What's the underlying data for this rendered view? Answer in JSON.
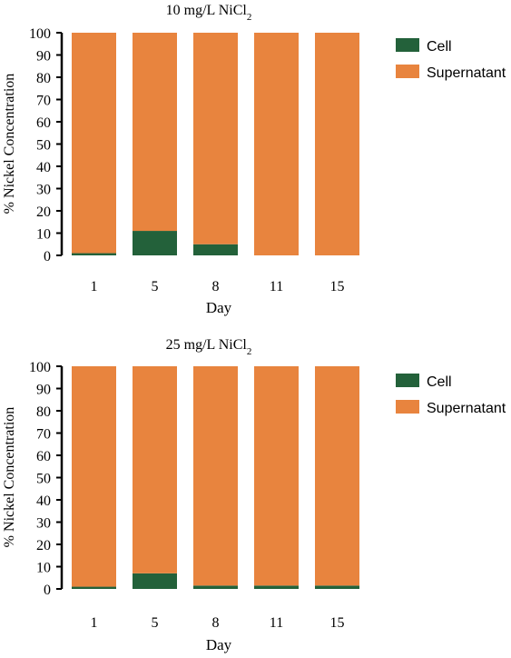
{
  "colors": {
    "cell": "#23613a",
    "supernatant": "#e8843e",
    "axis": "#000000"
  },
  "chart_data": [
    {
      "type": "bar",
      "stacked": true,
      "title_main": "10 mg/L NiCl",
      "title_sub": "2",
      "xlabel": "Day",
      "ylabel": "% Nickel Concentration",
      "ylim": [
        0,
        100
      ],
      "yticks": [
        "0",
        "10",
        "20",
        "30",
        "40",
        "50",
        "60",
        "70",
        "80",
        "90",
        "100"
      ],
      "categories": [
        "1",
        "5",
        "8",
        "11",
        "15"
      ],
      "legend_position": "right",
      "series": [
        {
          "name": "Cell",
          "color": "#23613a",
          "values": [
            1,
            11,
            5,
            0,
            0
          ]
        },
        {
          "name": "Supernatant",
          "color": "#e8843e",
          "values": [
            99,
            89,
            95,
            100,
            100
          ]
        }
      ]
    },
    {
      "type": "bar",
      "stacked": true,
      "title_main": "25 mg/L NiCl",
      "title_sub": "2",
      "xlabel": "Day",
      "ylabel": "% Nickel Concentration",
      "ylim": [
        0,
        100
      ],
      "yticks": [
        "0",
        "10",
        "20",
        "30",
        "40",
        "50",
        "60",
        "70",
        "80",
        "90",
        "100"
      ],
      "categories": [
        "1",
        "5",
        "8",
        "11",
        "15"
      ],
      "legend_position": "right",
      "series": [
        {
          "name": "Cell",
          "color": "#23613a",
          "values": [
            1,
            7,
            1.5,
            1.5,
            1.5
          ]
        },
        {
          "name": "Supernatant",
          "color": "#e8843e",
          "values": [
            99,
            93,
            98.5,
            98.5,
            98.5
          ]
        }
      ]
    }
  ]
}
